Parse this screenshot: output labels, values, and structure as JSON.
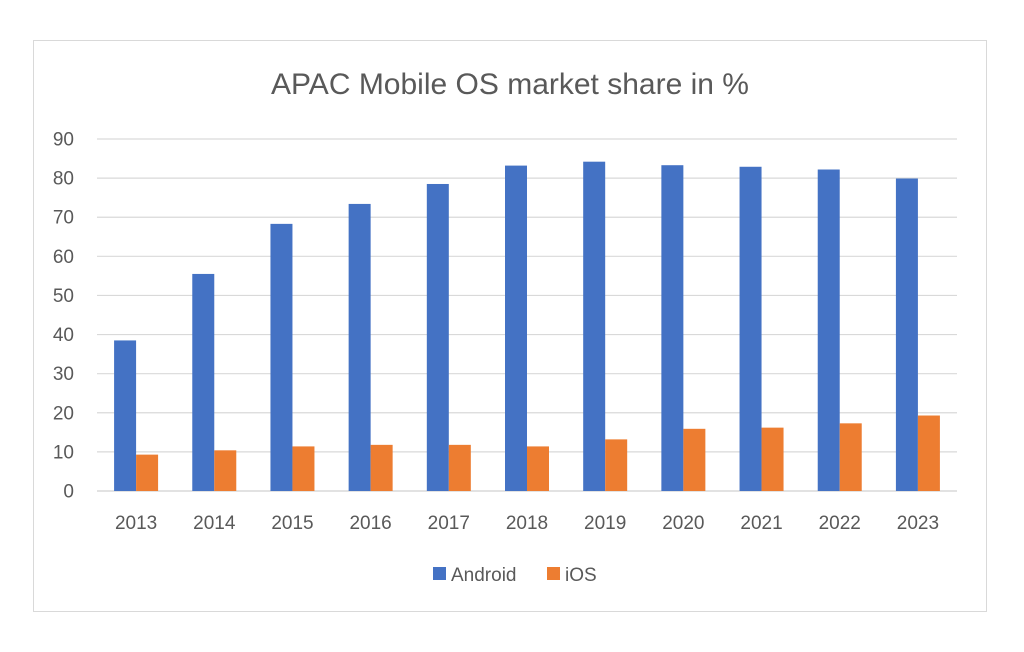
{
  "chart_data": {
    "type": "bar",
    "title": "APAC Mobile OS market share in %",
    "xlabel": "",
    "ylabel": "",
    "categories": [
      "2013",
      "2014",
      "2015",
      "2016",
      "2017",
      "2018",
      "2019",
      "2020",
      "2021",
      "2022",
      "2023"
    ],
    "series": [
      {
        "name": "Android",
        "color": "#4472C4",
        "values": [
          38.5,
          55.5,
          68.3,
          73.4,
          78.5,
          83.2,
          84.2,
          83.3,
          82.9,
          82.2,
          79.9
        ]
      },
      {
        "name": "iOS",
        "color": "#ED7D31",
        "values": [
          9.3,
          10.4,
          11.4,
          11.8,
          11.8,
          11.4,
          13.2,
          15.9,
          16.2,
          17.3,
          19.3
        ]
      }
    ],
    "ylim": [
      0,
      90
    ],
    "yticks": [
      "0",
      "10",
      "20",
      "30",
      "40",
      "50",
      "60",
      "70",
      "80",
      "90"
    ],
    "grid": true,
    "legend_position": "bottom"
  }
}
